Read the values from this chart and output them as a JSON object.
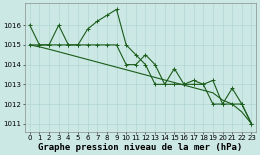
{
  "xlabel": "Graphe pression niveau de la mer (hPa)",
  "ylabel": "",
  "background_color": "#cce8e4",
  "grid_color": "#aad4d0",
  "line_color": "#1a5c1a",
  "x_values": [
    0,
    1,
    2,
    3,
    4,
    5,
    6,
    7,
    8,
    9,
    10,
    11,
    12,
    13,
    14,
    15,
    16,
    17,
    18,
    19,
    20,
    21,
    22,
    23
  ],
  "series1": [
    1016.0,
    1015.0,
    1015.0,
    1016.0,
    1015.0,
    1015.0,
    1015.8,
    1016.2,
    1016.5,
    1016.8,
    1015.0,
    1014.5,
    1014.0,
    1013.0,
    1013.0,
    1013.8,
    1013.0,
    1013.2,
    1013.0,
    1013.2,
    1012.0,
    1012.8,
    1012.0,
    1011.0
  ],
  "series2": [
    1015.0,
    1015.0,
    1015.0,
    1015.0,
    1015.0,
    1015.0,
    1015.0,
    1015.0,
    1015.0,
    1015.0,
    1014.0,
    1014.0,
    1014.5,
    1014.0,
    1013.0,
    1013.0,
    1013.0,
    1013.0,
    1013.0,
    1012.0,
    1012.0,
    1012.0,
    1012.0,
    1011.0
  ],
  "series3": [
    1015.0,
    1014.9,
    1014.78,
    1014.65,
    1014.52,
    1014.39,
    1014.26,
    1014.13,
    1014.0,
    1013.87,
    1013.74,
    1013.61,
    1013.48,
    1013.35,
    1013.22,
    1013.09,
    1012.96,
    1012.83,
    1012.7,
    1012.57,
    1012.2,
    1012.0,
    1011.6,
    1011.0
  ],
  "ylim": [
    1010.6,
    1017.1
  ],
  "yticks": [
    1011,
    1012,
    1013,
    1014,
    1015,
    1016
  ],
  "xticks": [
    0,
    1,
    2,
    3,
    4,
    5,
    6,
    7,
    8,
    9,
    10,
    11,
    12,
    13,
    14,
    15,
    16,
    17,
    18,
    19,
    20,
    21,
    22,
    23
  ],
  "tick_fontsize": 5.0,
  "xlabel_fontsize": 6.5,
  "marker": "+",
  "markersize": 2.5,
  "linewidth": 0.8
}
